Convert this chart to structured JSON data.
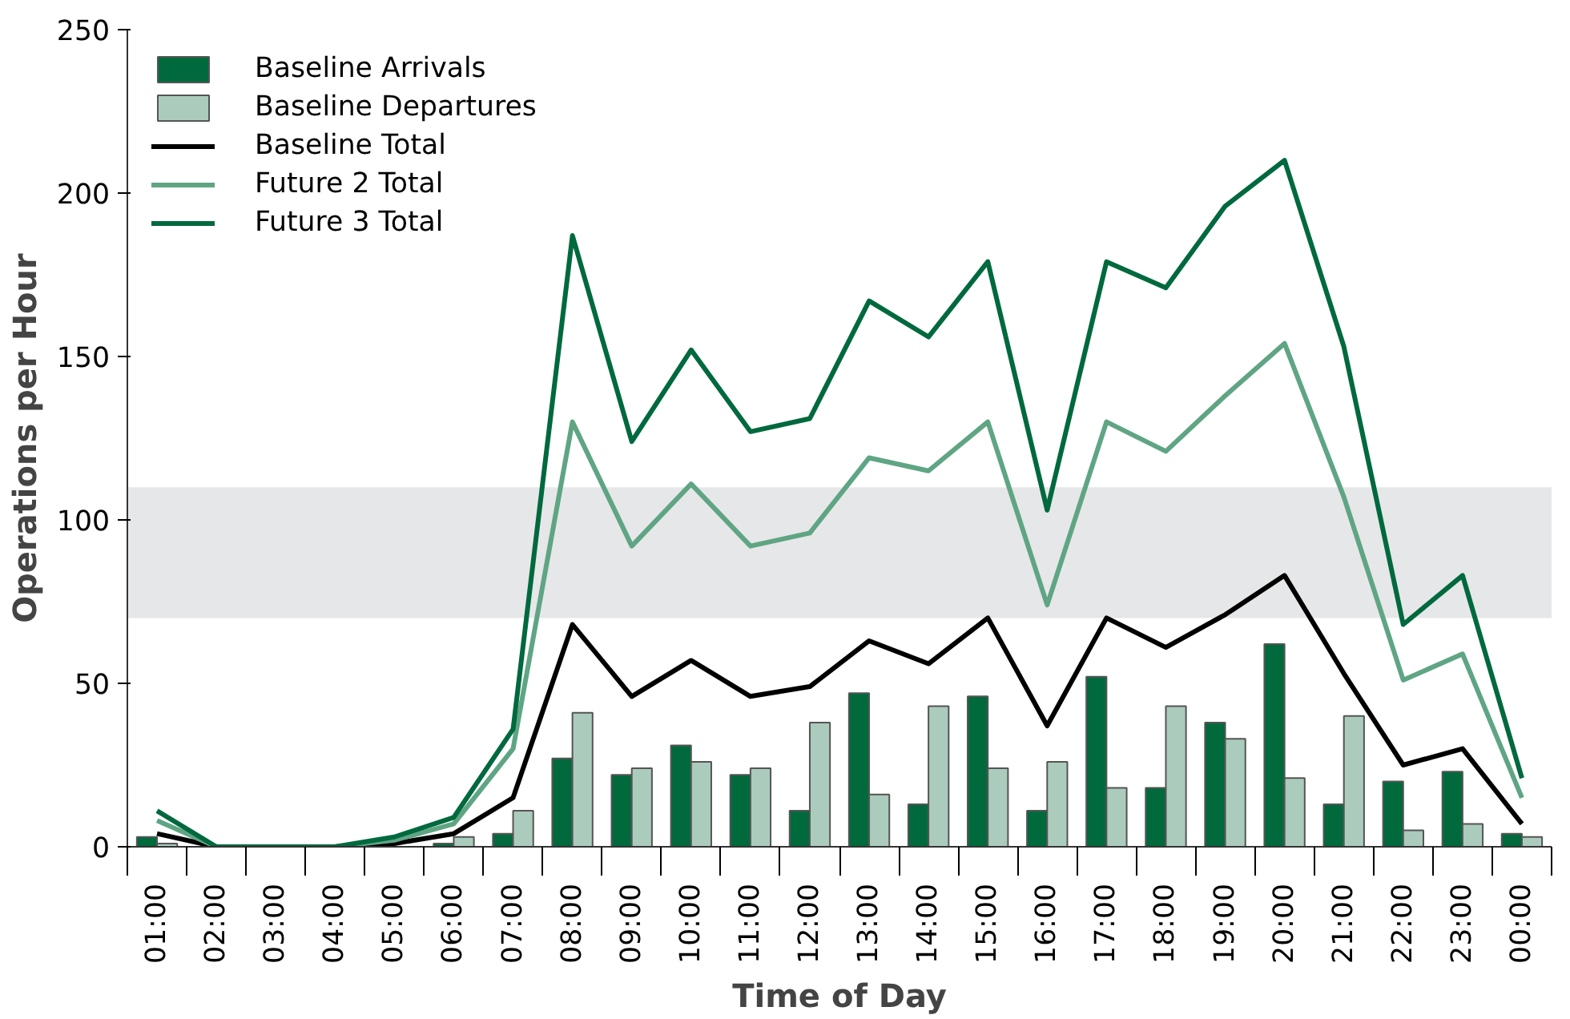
{
  "chart_data": {
    "type": "bar",
    "xlabel": "Time of Day",
    "ylabel": "Operations per Hour",
    "categories": [
      "01:00",
      "02:00",
      "03:00",
      "04:00",
      "05:00",
      "06:00",
      "07:00",
      "08:00",
      "09:00",
      "10:00",
      "11:00",
      "12:00",
      "13:00",
      "14:00",
      "15:00",
      "16:00",
      "17:00",
      "18:00",
      "19:00",
      "20:00",
      "21:00",
      "22:00",
      "23:00",
      "00:00"
    ],
    "series": [
      {
        "name": "Baseline Arrivals",
        "color": "#006a3d",
        "values": [
          3,
          0,
          0,
          0,
          0,
          1,
          4,
          27,
          22,
          31,
          22,
          11,
          47,
          13,
          46,
          11,
          52,
          18,
          38,
          62,
          13,
          20,
          23,
          4
        ]
      },
      {
        "name": "Baseline Departures",
        "color": "#abcbbd",
        "values": [
          1,
          0,
          0,
          0,
          0,
          3,
          11,
          41,
          24,
          26,
          24,
          38,
          16,
          43,
          24,
          26,
          18,
          43,
          33,
          21,
          40,
          5,
          7,
          3
        ]
      },
      {
        "name": "Baseline Total",
        "type": "line",
        "color": "#000000",
        "values": [
          4,
          0,
          0,
          0,
          1,
          4,
          15,
          68,
          46,
          57,
          46,
          49,
          63,
          56,
          70,
          37,
          70,
          61,
          71,
          83,
          53,
          25,
          30,
          7
        ]
      },
      {
        "name": "Future 2 Total",
        "type": "line",
        "color": "#5fa584",
        "values": [
          8,
          0,
          0,
          0,
          2,
          7,
          30,
          130,
          92,
          111,
          92,
          96,
          119,
          115,
          130,
          74,
          130,
          121,
          138,
          154,
          107,
          51,
          59,
          15
        ]
      },
      {
        "name": "Future 3 Total",
        "type": "line",
        "color": "#00693e",
        "values": [
          11,
          0,
          0,
          0,
          3,
          9,
          36,
          187,
          124,
          152,
          127,
          131,
          167,
          156,
          179,
          103,
          179,
          171,
          196,
          210,
          153,
          68,
          83,
          21
        ]
      }
    ],
    "ylim": [
      0,
      250
    ],
    "yticks": [
      0,
      50,
      100,
      150,
      200,
      250
    ],
    "bands": [
      {
        "axis": "y",
        "from": 70,
        "to": 110,
        "color": "#e6e7e8"
      }
    ],
    "grid": false,
    "legend": "top left",
    "marker": "none",
    "line_style": "solid"
  }
}
